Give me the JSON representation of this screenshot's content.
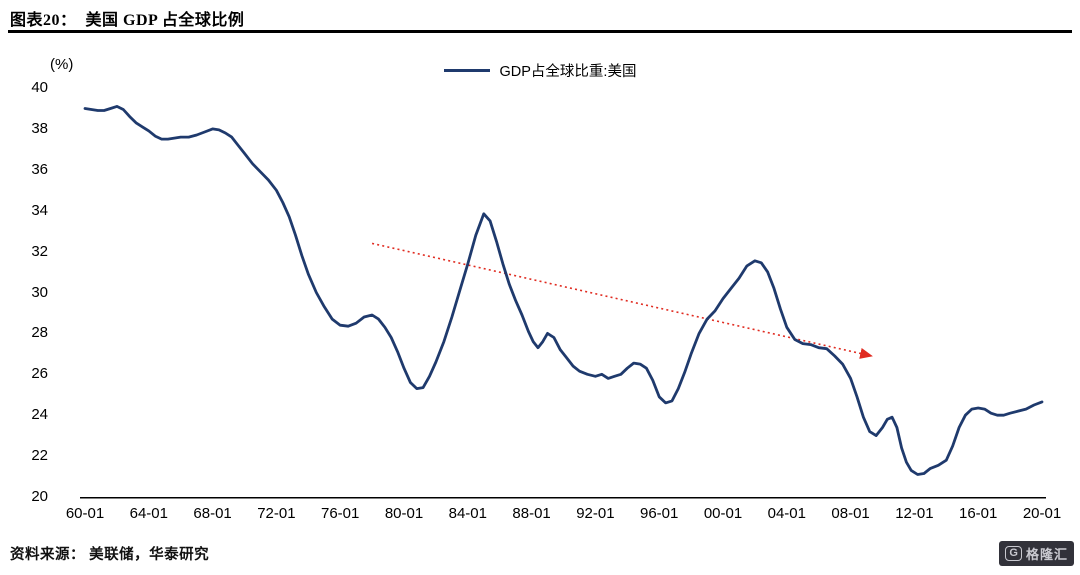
{
  "header": {
    "title": "图表20：  美国 GDP 占全球比例"
  },
  "legend": {
    "label": "GDP占全球比重:美国"
  },
  "axes": {
    "y_unit": "(%)",
    "y_ticks": [
      40,
      38,
      36,
      34,
      32,
      30,
      28,
      26,
      24,
      22,
      20
    ],
    "x_ticks": [
      "60-01",
      "64-01",
      "68-01",
      "72-01",
      "76-01",
      "80-01",
      "84-01",
      "88-01",
      "92-01",
      "96-01",
      "00-01",
      "04-01",
      "08-01",
      "12-01",
      "16-01",
      "20-01"
    ]
  },
  "footer": {
    "source": "资料来源： 美联储，华泰研究"
  },
  "logo": {
    "icon": "G",
    "text": "格隆汇"
  },
  "colors": {
    "line": "#1f3a6d",
    "trend": "#e02b20",
    "axis": "#000000"
  },
  "chart_data": {
    "type": "line",
    "title": "美国 GDP 占全球比例",
    "ylabel": "(%)",
    "ylim": [
      20,
      40
    ],
    "xlim": [
      1960,
      2020
    ],
    "grid": false,
    "legend_position": "top-center",
    "x_tick_labels": [
      "60-01",
      "64-01",
      "68-01",
      "72-01",
      "76-01",
      "80-01",
      "84-01",
      "88-01",
      "92-01",
      "96-01",
      "00-01",
      "04-01",
      "08-01",
      "12-01",
      "16-01",
      "20-01"
    ],
    "series": [
      {
        "name": "GDP占全球比重:美国",
        "points": [
          [
            1960.0,
            39.0
          ],
          [
            1960.4,
            38.95
          ],
          [
            1960.8,
            38.9
          ],
          [
            1961.2,
            38.9
          ],
          [
            1961.6,
            39.0
          ],
          [
            1962.0,
            39.1
          ],
          [
            1962.4,
            38.95
          ],
          [
            1962.8,
            38.6
          ],
          [
            1963.2,
            38.3
          ],
          [
            1963.6,
            38.1
          ],
          [
            1964.0,
            37.9
          ],
          [
            1964.4,
            37.65
          ],
          [
            1964.8,
            37.5
          ],
          [
            1965.2,
            37.5
          ],
          [
            1965.6,
            37.55
          ],
          [
            1966.0,
            37.6
          ],
          [
            1966.5,
            37.6
          ],
          [
            1967.0,
            37.7
          ],
          [
            1967.5,
            37.85
          ],
          [
            1968.0,
            38.0
          ],
          [
            1968.4,
            37.95
          ],
          [
            1968.8,
            37.8
          ],
          [
            1969.2,
            37.6
          ],
          [
            1969.6,
            37.2
          ],
          [
            1970.0,
            36.8
          ],
          [
            1970.5,
            36.3
          ],
          [
            1971.0,
            35.9
          ],
          [
            1971.5,
            35.5
          ],
          [
            1972.0,
            35.0
          ],
          [
            1972.4,
            34.4
          ],
          [
            1972.8,
            33.7
          ],
          [
            1973.2,
            32.8
          ],
          [
            1973.6,
            31.8
          ],
          [
            1974.0,
            30.9
          ],
          [
            1974.5,
            30.0
          ],
          [
            1975.0,
            29.3
          ],
          [
            1975.5,
            28.7
          ],
          [
            1976.0,
            28.4
          ],
          [
            1976.5,
            28.35
          ],
          [
            1977.0,
            28.5
          ],
          [
            1977.5,
            28.8
          ],
          [
            1978.0,
            28.9
          ],
          [
            1978.4,
            28.7
          ],
          [
            1978.8,
            28.3
          ],
          [
            1979.2,
            27.8
          ],
          [
            1979.6,
            27.1
          ],
          [
            1980.0,
            26.3
          ],
          [
            1980.4,
            25.6
          ],
          [
            1980.8,
            25.3
          ],
          [
            1981.2,
            25.35
          ],
          [
            1981.6,
            25.9
          ],
          [
            1982.0,
            26.6
          ],
          [
            1982.5,
            27.6
          ],
          [
            1983.0,
            28.8
          ],
          [
            1983.5,
            30.1
          ],
          [
            1984.0,
            31.4
          ],
          [
            1984.5,
            32.8
          ],
          [
            1985.0,
            33.85
          ],
          [
            1985.4,
            33.5
          ],
          [
            1985.8,
            32.5
          ],
          [
            1986.2,
            31.4
          ],
          [
            1986.6,
            30.4
          ],
          [
            1987.0,
            29.6
          ],
          [
            1987.4,
            28.9
          ],
          [
            1987.8,
            28.1
          ],
          [
            1988.1,
            27.6
          ],
          [
            1988.4,
            27.3
          ],
          [
            1988.7,
            27.6
          ],
          [
            1989.0,
            28.0
          ],
          [
            1989.4,
            27.8
          ],
          [
            1989.8,
            27.2
          ],
          [
            1990.2,
            26.8
          ],
          [
            1990.6,
            26.4
          ],
          [
            1991.0,
            26.15
          ],
          [
            1991.5,
            26.0
          ],
          [
            1992.0,
            25.9
          ],
          [
            1992.4,
            26.0
          ],
          [
            1992.8,
            25.8
          ],
          [
            1993.2,
            25.9
          ],
          [
            1993.6,
            26.0
          ],
          [
            1994.0,
            26.3
          ],
          [
            1994.4,
            26.55
          ],
          [
            1994.8,
            26.5
          ],
          [
            1995.2,
            26.3
          ],
          [
            1995.6,
            25.7
          ],
          [
            1996.0,
            24.9
          ],
          [
            1996.4,
            24.6
          ],
          [
            1996.8,
            24.7
          ],
          [
            1997.2,
            25.3
          ],
          [
            1997.6,
            26.1
          ],
          [
            1998.0,
            27.0
          ],
          [
            1998.5,
            28.0
          ],
          [
            1999.0,
            28.7
          ],
          [
            1999.5,
            29.1
          ],
          [
            2000.0,
            29.7
          ],
          [
            2000.5,
            30.2
          ],
          [
            2001.0,
            30.7
          ],
          [
            2001.5,
            31.3
          ],
          [
            2002.0,
            31.55
          ],
          [
            2002.4,
            31.45
          ],
          [
            2002.8,
            31.0
          ],
          [
            2003.2,
            30.2
          ],
          [
            2003.6,
            29.2
          ],
          [
            2004.0,
            28.3
          ],
          [
            2004.5,
            27.7
          ],
          [
            2005.0,
            27.5
          ],
          [
            2005.5,
            27.45
          ],
          [
            2006.0,
            27.3
          ],
          [
            2006.5,
            27.25
          ],
          [
            2007.0,
            26.9
          ],
          [
            2007.5,
            26.5
          ],
          [
            2008.0,
            25.8
          ],
          [
            2008.4,
            24.9
          ],
          [
            2008.8,
            23.9
          ],
          [
            2009.2,
            23.2
          ],
          [
            2009.6,
            23.0
          ],
          [
            2010.0,
            23.4
          ],
          [
            2010.3,
            23.8
          ],
          [
            2010.6,
            23.9
          ],
          [
            2010.9,
            23.4
          ],
          [
            2011.2,
            22.4
          ],
          [
            2011.5,
            21.7
          ],
          [
            2011.8,
            21.3
          ],
          [
            2012.2,
            21.1
          ],
          [
            2012.6,
            21.15
          ],
          [
            2013.0,
            21.4
          ],
          [
            2013.5,
            21.55
          ],
          [
            2014.0,
            21.8
          ],
          [
            2014.4,
            22.5
          ],
          [
            2014.8,
            23.4
          ],
          [
            2015.2,
            24.0
          ],
          [
            2015.6,
            24.3
          ],
          [
            2016.0,
            24.35
          ],
          [
            2016.4,
            24.3
          ],
          [
            2016.8,
            24.1
          ],
          [
            2017.2,
            24.0
          ],
          [
            2017.6,
            24.0
          ],
          [
            2018.0,
            24.1
          ],
          [
            2018.5,
            24.2
          ],
          [
            2019.0,
            24.3
          ],
          [
            2019.5,
            24.5
          ],
          [
            2020.0,
            24.65
          ]
        ]
      }
    ],
    "trend_arrow": {
      "from": [
        1978.0,
        32.4
      ],
      "to": [
        2009.3,
        26.9
      ],
      "style": "dotted",
      "color": "#e02b20"
    }
  }
}
